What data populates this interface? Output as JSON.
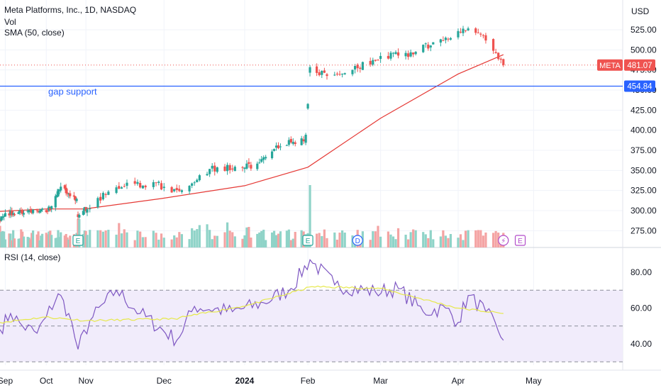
{
  "header": {
    "symbol_title": "Meta Platforms, Inc., 1D, NASDAQ",
    "volume_label": "Vol",
    "sma_label": "SMA (50, close)",
    "currency": "USD"
  },
  "rsi_panel": {
    "label": "RSI (14, close)"
  },
  "colors": {
    "up": "#26a69a",
    "down": "#ef5350",
    "vol_up": "#8fd3c8",
    "vol_down": "#f4a3a3",
    "sma": "#e53935",
    "rsi": "#7e57c2",
    "rsi_ma": "#e6e84a",
    "support": "#2962ff",
    "rsi_band": "#f1ecfb"
  },
  "chart_data": {
    "type": "candlestick",
    "title": "Meta Platforms, Inc., 1D, NASDAQ",
    "price_axis": {
      "ticks": [
        275.0,
        300.0,
        325.0,
        350.0,
        375.0,
        400.0,
        425.0,
        450.0,
        475.0,
        500.0,
        525.0
      ],
      "tick_labels": [
        "275.00",
        "300.00",
        "325.00",
        "350.00",
        "375.00",
        "400.00",
        "425.00",
        "450.00",
        "475.00",
        "500.00",
        "525.00"
      ]
    },
    "time_axis": {
      "labels": [
        {
          "text": "Sep",
          "date": "2023-09-01"
        },
        {
          "text": "Oct",
          "date": "2023-10-02"
        },
        {
          "text": "Nov",
          "date": "2023-11-01"
        },
        {
          "text": "Dec",
          "date": "2023-12-01"
        },
        {
          "text": "2024",
          "date": "2024-01-02"
        },
        {
          "text": "Feb",
          "date": "2024-02-01"
        },
        {
          "text": "Mar",
          "date": "2024-03-01"
        },
        {
          "text": "Apr",
          "date": "2024-04-01"
        },
        {
          "text": "May",
          "date": "2024-05-01"
        }
      ],
      "range": [
        "2023-08-28",
        "2024-05-02"
      ]
    },
    "price_series_closes": [
      {
        "date": "2023-08-28",
        "close": 291
      },
      {
        "date": "2023-09-12",
        "close": 301
      },
      {
        "date": "2023-09-27",
        "close": 297
      },
      {
        "date": "2023-10-05",
        "close": 302
      },
      {
        "date": "2023-10-12",
        "close": 327
      },
      {
        "date": "2023-10-20",
        "close": 321
      },
      {
        "date": "2023-10-25",
        "close": 313
      },
      {
        "date": "2023-10-26",
        "close": 290
      },
      {
        "date": "2023-10-31",
        "close": 300
      },
      {
        "date": "2023-11-15",
        "close": 333
      },
      {
        "date": "2023-11-28",
        "close": 333
      },
      {
        "date": "2023-12-07",
        "close": 320
      },
      {
        "date": "2023-12-20",
        "close": 352
      },
      {
        "date": "2024-01-05",
        "close": 355
      },
      {
        "date": "2024-01-19",
        "close": 383
      },
      {
        "date": "2024-01-31",
        "close": 390
      },
      {
        "date": "2024-02-02",
        "close": 474
      },
      {
        "date": "2024-02-09",
        "close": 468
      },
      {
        "date": "2024-02-16",
        "close": 473
      },
      {
        "date": "2024-02-26",
        "close": 484
      },
      {
        "date": "2024-03-06",
        "close": 496
      },
      {
        "date": "2024-03-13",
        "close": 495
      },
      {
        "date": "2024-03-20",
        "close": 505
      },
      {
        "date": "2024-04-05",
        "close": 527
      },
      {
        "date": "2024-04-10",
        "close": 516
      },
      {
        "date": "2024-04-16",
        "close": 498
      },
      {
        "date": "2024-04-19",
        "close": 481.07
      }
    ],
    "sma_50": [
      {
        "date": "2023-08-28",
        "value": 299
      },
      {
        "date": "2023-10-02",
        "value": 302
      },
      {
        "date": "2023-10-31",
        "value": 302
      },
      {
        "date": "2023-11-30",
        "value": 315
      },
      {
        "date": "2024-01-02",
        "value": 331
      },
      {
        "date": "2024-02-01",
        "value": 354
      },
      {
        "date": "2024-03-01",
        "value": 415
      },
      {
        "date": "2024-04-01",
        "value": 470
      },
      {
        "date": "2024-04-19",
        "value": 494
      }
    ],
    "gap_support": {
      "value": 454.84,
      "label": "gap support"
    },
    "last_price": {
      "symbol": "META",
      "value": "481.07"
    },
    "support_tag": "454.84",
    "events": [
      {
        "date": "2023-10-26",
        "badge": "E",
        "type": "earnings"
      },
      {
        "date": "2024-02-01",
        "badge": "E",
        "type": "earnings"
      },
      {
        "date": "2024-02-21",
        "badge": "D",
        "type": "dividend"
      },
      {
        "date": "2024-04-19",
        "badge": "⚡",
        "type": "split/event"
      },
      {
        "date": "2024-04-24",
        "badge": "E",
        "type": "earnings"
      }
    ],
    "volume": {
      "spike_date": "2024-02-02"
    },
    "rsi": {
      "axis_ticks": [
        "40.00",
        "60.00",
        "80.00"
      ],
      "upper_band": 70,
      "middle_band": 50,
      "lower_band": 30,
      "points": [
        {
          "date": "2023-08-28",
          "value": 48
        },
        {
          "date": "2023-09-05",
          "value": 57
        },
        {
          "date": "2023-09-14",
          "value": 50
        },
        {
          "date": "2023-09-25",
          "value": 46
        },
        {
          "date": "2023-10-02",
          "value": 55
        },
        {
          "date": "2023-10-11",
          "value": 68
        },
        {
          "date": "2023-10-19",
          "value": 57
        },
        {
          "date": "2023-10-26",
          "value": 37
        },
        {
          "date": "2023-11-03",
          "value": 53
        },
        {
          "date": "2023-11-13",
          "value": 70
        },
        {
          "date": "2023-11-22",
          "value": 57
        },
        {
          "date": "2023-12-06",
          "value": 42
        },
        {
          "date": "2023-12-13",
          "value": 61
        },
        {
          "date": "2023-12-28",
          "value": 58
        },
        {
          "date": "2024-01-11",
          "value": 63
        },
        {
          "date": "2024-01-24",
          "value": 71
        },
        {
          "date": "2024-02-02",
          "value": 87
        },
        {
          "date": "2024-02-12",
          "value": 73
        },
        {
          "date": "2024-02-28",
          "value": 69
        },
        {
          "date": "2024-03-08",
          "value": 71
        },
        {
          "date": "2024-03-18",
          "value": 58
        },
        {
          "date": "2024-03-27",
          "value": 60
        },
        {
          "date": "2024-04-01",
          "value": 52
        },
        {
          "date": "2024-04-05",
          "value": 67
        },
        {
          "date": "2024-04-12",
          "value": 58
        },
        {
          "date": "2024-04-17",
          "value": 47
        },
        {
          "date": "2024-04-19",
          "value": 42
        }
      ],
      "ma_points": [
        {
          "date": "2023-08-28",
          "value": 52
        },
        {
          "date": "2023-10-01",
          "value": 55
        },
        {
          "date": "2023-11-01",
          "value": 53
        },
        {
          "date": "2023-12-05",
          "value": 54
        },
        {
          "date": "2024-01-05",
          "value": 62
        },
        {
          "date": "2024-02-03",
          "value": 72
        },
        {
          "date": "2024-03-01",
          "value": 71
        },
        {
          "date": "2024-04-01",
          "value": 60
        },
        {
          "date": "2024-04-19",
          "value": 57
        }
      ]
    }
  }
}
